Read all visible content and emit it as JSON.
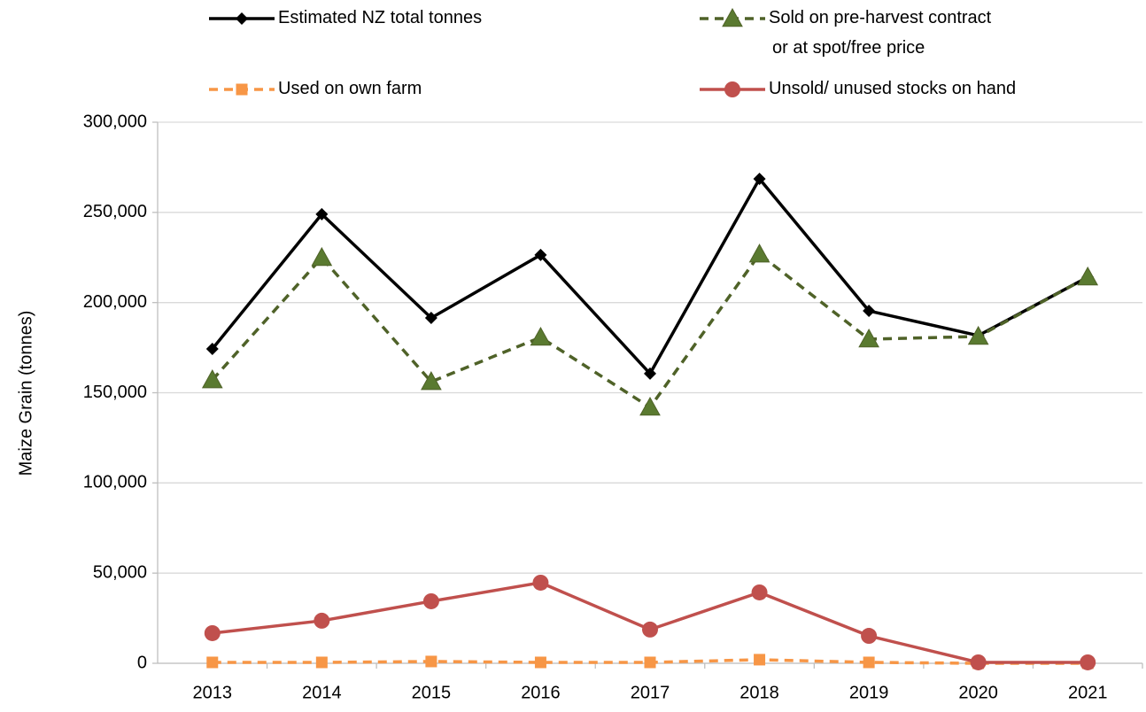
{
  "chart_data": {
    "type": "line",
    "y_label": "Maize Grain (tonnes)",
    "categories": [
      "2013",
      "2014",
      "2015",
      "2016",
      "2017",
      "2018",
      "2019",
      "2020",
      "2021"
    ],
    "series": [
      {
        "name": "Estimated NZ total tonnes",
        "color": "#000000",
        "marker": "diamond",
        "dash": false,
        "values": [
          174300,
          249000,
          191500,
          226400,
          160600,
          268600,
          195400,
          181700,
          214100
        ]
      },
      {
        "name": "Sold on pre-harvest contract\nor at spot/free price",
        "color": "#4f6228",
        "marker": "triangle",
        "dash": true,
        "values": [
          157100,
          224900,
          156100,
          180700,
          141900,
          226800,
          179700,
          181200,
          214100
        ]
      },
      {
        "name": "Used on own farm",
        "color": "#f79646",
        "marker": "square",
        "dash": true,
        "values": [
          500,
          500,
          1000,
          500,
          500,
          2000,
          500,
          0,
          0
        ]
      },
      {
        "name": "Unsold/ unused stocks on hand",
        "color": "#c0504d",
        "marker": "circle",
        "dash": false,
        "values": [
          16700,
          23600,
          34400,
          44700,
          18700,
          39300,
          15200,
          500,
          500
        ]
      }
    ],
    "ylim": [
      0,
      300000
    ],
    "yticks": [
      0,
      {
        "value": 50000,
        "label": "50,000"
      },
      {
        "value": 100000,
        "label": "100,000"
      },
      {
        "value": 150000,
        "label": "150,000"
      },
      {
        "value": 200000,
        "label": "200,000"
      },
      {
        "value": 250000,
        "label": "250,000"
      },
      {
        "value": 300000,
        "label": "300,000"
      }
    ],
    "grid": true
  }
}
